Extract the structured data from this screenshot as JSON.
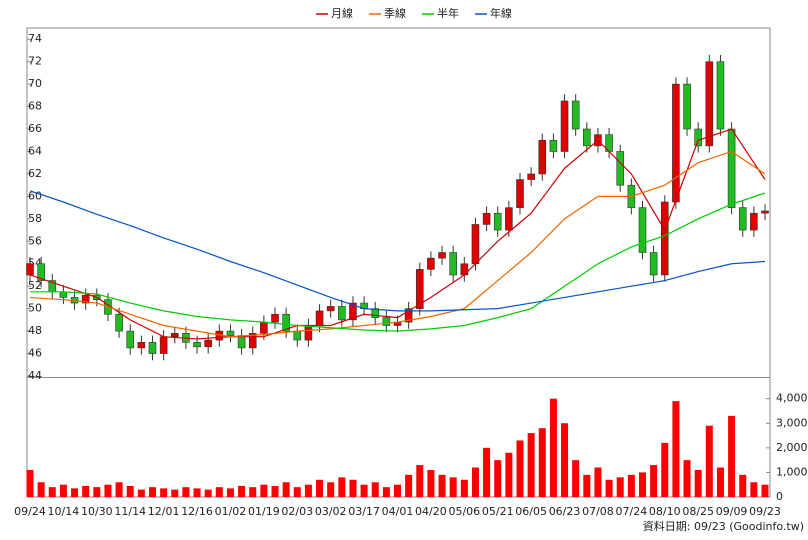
{
  "chart_data": [
    {
      "type": "candlestick",
      "open": [
        53.0,
        54.0,
        52.5,
        51.5,
        51.0,
        50.5,
        51.2,
        50.8,
        49.5,
        48.0,
        46.5,
        47.0,
        46.0,
        47.5,
        47.8,
        47.0,
        46.6,
        47.2,
        48.0,
        47.6,
        46.5,
        47.8,
        48.8,
        49.5,
        48.0,
        47.2,
        48.5,
        49.8,
        50.2,
        49.0,
        50.5,
        50.0,
        49.2,
        48.5,
        48.8,
        50.0,
        53.5,
        54.5,
        55.0,
        53.0,
        54.0,
        57.5,
        58.5,
        57.0,
        59.0,
        61.5,
        62.0,
        65.0,
        64.0,
        68.5,
        66.0,
        64.5,
        65.5,
        64.0,
        61.0,
        59.0,
        55.0,
        53.0,
        59.5,
        70.0,
        66.0,
        64.5,
        72.0,
        66.0,
        59.0,
        57.0,
        58.5
      ],
      "high": [
        54.6,
        54.6,
        53.1,
        52.1,
        51.6,
        51.8,
        51.8,
        51.4,
        50.1,
        48.6,
        47.6,
        47.6,
        48.1,
        48.4,
        48.4,
        47.6,
        47.8,
        48.6,
        48.6,
        48.2,
        48.4,
        49.4,
        50.1,
        50.1,
        48.6,
        49.1,
        50.4,
        50.8,
        50.8,
        51.1,
        51.1,
        50.6,
        49.8,
        49.4,
        50.6,
        54.1,
        55.1,
        55.6,
        55.6,
        54.6,
        58.1,
        59.1,
        59.1,
        59.6,
        62.1,
        62.6,
        65.6,
        65.6,
        69.1,
        69.1,
        66.6,
        66.1,
        66.1,
        64.6,
        61.6,
        59.6,
        55.6,
        60.1,
        70.6,
        70.6,
        66.6,
        72.6,
        72.6,
        66.6,
        59.6,
        59.1,
        59.3
      ],
      "low": [
        52.4,
        51.9,
        50.9,
        50.4,
        49.9,
        49.9,
        50.2,
        48.9,
        47.4,
        45.9,
        45.9,
        45.4,
        45.4,
        46.9,
        46.4,
        46.0,
        46.0,
        46.6,
        47.0,
        45.9,
        45.9,
        47.2,
        48.2,
        47.4,
        46.6,
        46.6,
        47.9,
        49.2,
        48.4,
        48.4,
        49.4,
        48.6,
        47.9,
        47.9,
        48.2,
        49.4,
        52.9,
        53.9,
        52.4,
        52.4,
        53.4,
        56.9,
        56.4,
        56.4,
        58.4,
        60.9,
        61.4,
        63.4,
        63.4,
        65.4,
        63.9,
        63.9,
        63.4,
        60.4,
        58.4,
        54.4,
        52.4,
        52.4,
        58.9,
        65.4,
        63.9,
        63.9,
        65.4,
        58.4,
        56.4,
        56.4,
        57.9
      ],
      "close": [
        54.0,
        52.5,
        51.5,
        51.0,
        50.5,
        51.2,
        50.8,
        49.5,
        48.0,
        46.5,
        47.0,
        46.0,
        47.5,
        47.8,
        47.0,
        46.6,
        47.2,
        48.0,
        47.6,
        46.5,
        47.8,
        48.8,
        49.5,
        48.0,
        47.2,
        48.5,
        49.8,
        50.2,
        49.0,
        50.5,
        50.0,
        49.2,
        48.5,
        48.8,
        50.0,
        53.5,
        54.5,
        55.0,
        53.0,
        54.0,
        57.5,
        58.5,
        57.0,
        59.0,
        61.5,
        62.0,
        65.0,
        64.0,
        68.5,
        66.0,
        64.5,
        65.5,
        64.0,
        61.0,
        59.0,
        55.0,
        53.0,
        59.5,
        70.0,
        66.0,
        64.5,
        72.0,
        66.0,
        59.0,
        57.0,
        58.5,
        58.7
      ],
      "volume": [
        1100,
        600,
        400,
        500,
        350,
        450,
        400,
        500,
        600,
        450,
        300,
        400,
        350,
        300,
        400,
        350,
        300,
        400,
        350,
        450,
        400,
        500,
        450,
        600,
        400,
        500,
        700,
        600,
        800,
        700,
        500,
        600,
        400,
        500,
        900,
        1300,
        1100,
        900,
        800,
        700,
        1200,
        2000,
        1500,
        1800,
        2300,
        2600,
        2800,
        4000,
        3000,
        1500,
        900,
        1200,
        700,
        800,
        900,
        1000,
        1300,
        2200,
        3900,
        1500,
        1100,
        2900,
        1200,
        3300,
        900,
        600,
        500
      ],
      "up_color": "#e00000",
      "down_color": "#22bb22",
      "volume_color": "#ff0000",
      "ylim": [
        44,
        75
      ],
      "yticks": [
        44,
        46,
        48,
        50,
        52,
        54,
        56,
        58,
        60,
        62,
        64,
        66,
        68,
        70,
        72,
        74
      ],
      "y2lim": [
        0,
        4800
      ],
      "y2ticks": [
        0,
        {
          "value": 1000,
          "label": "1,000"
        },
        {
          "value": 2000,
          "label": "2,000"
        },
        {
          "value": 3000,
          "label": "3,000"
        },
        {
          "value": 4000,
          "label": "4,000"
        }
      ],
      "footer": "資料日期: 09/23  (Goodinfo.tw)"
    },
    {
      "type": "line",
      "categories": [
        "09/24",
        "10/14",
        "10/30",
        "11/14",
        "12/01",
        "12/16",
        "01/02",
        "01/19",
        "02/03",
        "03/02",
        "03/17",
        "04/01",
        "04/20",
        "05/06",
        "05/21",
        "06/05",
        "06/23",
        "07/08",
        "07/24",
        "08/10",
        "08/25",
        "09/09",
        "09/23"
      ],
      "series": [
        {
          "name": "月線",
          "color": "#cc0000",
          "values": [
            53,
            52,
            51,
            49,
            47.5,
            47.3,
            47.5,
            47.5,
            48.5,
            48.5,
            49.5,
            49.2,
            51,
            53,
            56,
            58.5,
            62.5,
            65,
            62,
            57,
            65,
            66,
            61.5
          ]
        },
        {
          "name": "季線",
          "color": "#ee6600",
          "values": [
            51,
            50.8,
            50.5,
            49.5,
            48.5,
            48,
            47.5,
            47.7,
            48,
            48.2,
            48.5,
            48.8,
            49.3,
            50,
            52.5,
            55,
            58,
            60,
            60,
            61,
            63,
            64,
            62
          ]
        },
        {
          "name": "半年",
          "color": "#00cc00",
          "values": [
            51.5,
            51.5,
            51.3,
            50.5,
            49.8,
            49.3,
            49,
            48.8,
            48.5,
            48.3,
            48.1,
            48,
            48.2,
            48.5,
            49.2,
            50,
            52,
            54,
            55.5,
            56.5,
            58,
            59.3,
            60.3
          ]
        },
        {
          "name": "年線",
          "color": "#0055cc",
          "values": [
            60.5,
            59.5,
            58.4,
            57.4,
            56.3,
            55.3,
            54.2,
            53.2,
            52.1,
            51,
            50,
            49.8,
            49.8,
            49.9,
            50,
            50.5,
            51,
            51.5,
            52,
            52.5,
            53.3,
            54,
            54.2
          ]
        }
      ],
      "legend": "top"
    }
  ]
}
